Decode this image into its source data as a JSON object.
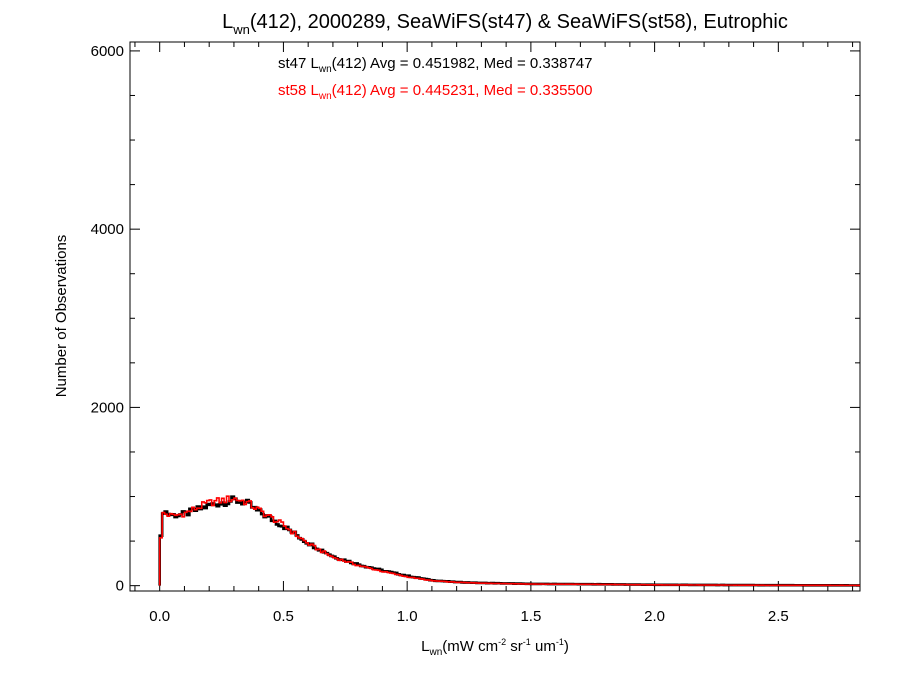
{
  "chart_data": {
    "type": "line",
    "title": {
      "prefix": "L",
      "prefix_sub": "wn",
      "rest": "(412), 2000289, SeaWiFS(st47) & SeaWiFS(st58), Eutrophic"
    },
    "xlabel": {
      "main": "L",
      "sub": "wn",
      "units": [
        "(mW cm",
        "-2",
        " sr",
        "-1",
        " um",
        "-1",
        ")"
      ]
    },
    "ylabel": "Number of Observations",
    "xlim": [
      -0.12,
      2.83
    ],
    "ylim": [
      -60,
      6100
    ],
    "x_ticks": [
      0.0,
      0.5,
      1.0,
      1.5,
      2.0,
      2.5
    ],
    "x_tick_labels": [
      "0.0",
      "0.5",
      "1.0",
      "1.5",
      "2.0",
      "2.5"
    ],
    "y_ticks": [
      0,
      2000,
      4000,
      6000
    ],
    "y_tick_labels": [
      "0",
      "2000",
      "4000",
      "6000"
    ],
    "x_minor_step": 0.1,
    "y_minor_step": 500,
    "grid": false,
    "annotations": [
      {
        "series": "st47",
        "color": "#000000",
        "prefix": "st47 L",
        "sub": "wn",
        "rest": "(412) Avg = 0.451982, Med = 0.338747"
      },
      {
        "series": "st58",
        "color": "#ff0000",
        "prefix": "st58 L",
        "sub": "wn",
        "rest": "(412) Avg = 0.445231, Med = 0.335500"
      }
    ],
    "bin_width": 0.01,
    "series": [
      {
        "color": "#000000",
        "profile_x": [
          0.0,
          0.01,
          0.05,
          0.1,
          0.2,
          0.3,
          0.35,
          0.4,
          0.5,
          0.6,
          0.7,
          0.8,
          0.9,
          1.0,
          1.1,
          1.2,
          1.3,
          1.5,
          1.8,
          2.0,
          2.5,
          2.83
        ],
        "profile_y": [
          230,
          850,
          790,
          800,
          900,
          960,
          930,
          830,
          670,
          480,
          330,
          240,
          170,
          110,
          60,
          40,
          30,
          20,
          15,
          10,
          5,
          3
        ]
      },
      {
        "color": "#ff0000",
        "profile_x": [
          0.0,
          0.01,
          0.05,
          0.1,
          0.2,
          0.3,
          0.35,
          0.4,
          0.5,
          0.6,
          0.7,
          0.8,
          0.9,
          1.0,
          1.1,
          1.2,
          1.3,
          1.5,
          1.8,
          2.0,
          2.5,
          2.83
        ],
        "profile_y": [
          230,
          820,
          780,
          810,
          930,
          980,
          940,
          850,
          680,
          470,
          320,
          230,
          160,
          100,
          55,
          38,
          28,
          18,
          14,
          9,
          4,
          3
        ]
      }
    ]
  }
}
